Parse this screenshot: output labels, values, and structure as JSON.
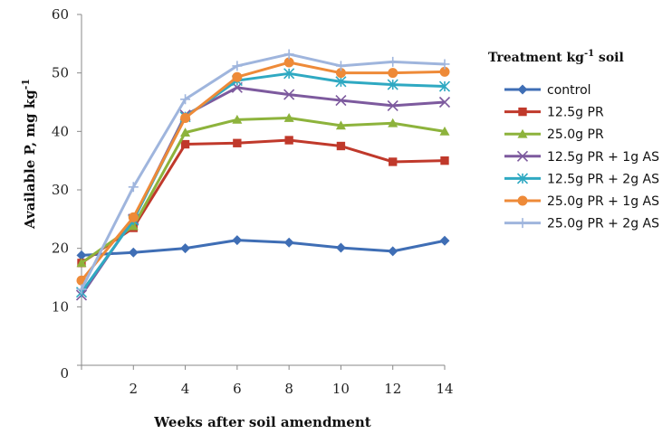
{
  "chart_data": {
    "type": "line",
    "xlabel": "Weeks after soil amendment",
    "ylabel": "Available P, mg kg",
    "ylabel_sup": "-1",
    "legend_title": "Treatment kg",
    "legend_title_sup": "-1",
    "legend_title_suffix": " soil",
    "legend_position": "right",
    "grid": false,
    "xlim": [
      0,
      14
    ],
    "ylim": [
      0,
      60
    ],
    "x_ticks": [
      "2",
      "4",
      "6",
      "8",
      "10",
      "12",
      "14"
    ],
    "y_ticks": [
      "0",
      "10",
      "20",
      "30",
      "40",
      "50",
      "60"
    ],
    "x": [
      0,
      2,
      4,
      6,
      8,
      10,
      12,
      14
    ],
    "series": [
      {
        "name": "control",
        "color": "#3f6eb5",
        "marker": "diamond",
        "values": [
          18.8,
          19.3,
          20.0,
          21.4,
          21.0,
          20.1,
          19.5,
          21.3
        ]
      },
      {
        "name": "12.5g PR",
        "color": "#c0392b",
        "marker": "square",
        "values": [
          17.5,
          23.5,
          37.8,
          38.0,
          38.5,
          37.5,
          34.8,
          35.0
        ]
      },
      {
        "name": "25.0g PR",
        "color": "#8db33c",
        "marker": "triangle",
        "values": [
          17.5,
          23.8,
          39.8,
          42.0,
          42.3,
          41.0,
          41.4,
          40.0
        ]
      },
      {
        "name": "12.5g PR + 1g AS",
        "color": "#7d5a9e",
        "marker": "x",
        "values": [
          12.0,
          25.0,
          42.8,
          47.5,
          46.3,
          45.3,
          44.4,
          45.0
        ]
      },
      {
        "name": "12.5g PR + 2g AS",
        "color": "#2fa9c2",
        "marker": "star",
        "values": [
          12.5,
          24.8,
          42.5,
          48.7,
          49.9,
          48.5,
          48.0,
          47.7
        ]
      },
      {
        "name": "25.0g PR + 1g AS",
        "color": "#ee8a38",
        "marker": "circle",
        "values": [
          14.5,
          25.3,
          42.3,
          49.3,
          51.8,
          50.0,
          50.0,
          50.2
        ]
      },
      {
        "name": "25.0g PR + 2g AS",
        "color": "#9fb5dd",
        "marker": "plus",
        "values": [
          13.0,
          30.5,
          45.5,
          51.2,
          53.2,
          51.2,
          51.9,
          51.5
        ]
      }
    ]
  }
}
